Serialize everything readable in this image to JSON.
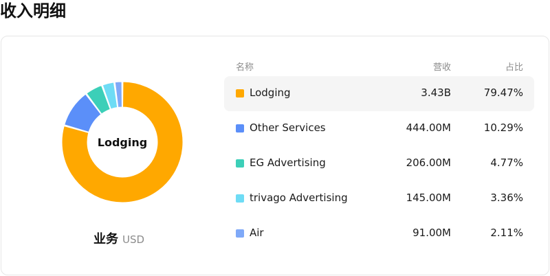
{
  "page": {
    "title": "收入明细"
  },
  "donut": {
    "center_label": "Lodging"
  },
  "segment_label": {
    "main": "业务",
    "unit": "USD"
  },
  "table": {
    "headers": {
      "name": "名称",
      "revenue": "营收",
      "share": "占比"
    },
    "rows": [
      {
        "name": "Lodging",
        "revenue": "3.43B",
        "share": "79.47%",
        "color": "#FFA800",
        "active": true
      },
      {
        "name": "Other Services",
        "revenue": "444.00M",
        "share": "10.29%",
        "color": "#5B8FF9",
        "active": false
      },
      {
        "name": "EG Advertising",
        "revenue": "206.00M",
        "share": "4.77%",
        "color": "#3CCFB8",
        "active": false
      },
      {
        "name": "trivago Advertising",
        "revenue": "145.00M",
        "share": "3.36%",
        "color": "#6EDCF5",
        "active": false
      },
      {
        "name": "Air",
        "revenue": "91.00M",
        "share": "2.11%",
        "color": "#7FA9F8",
        "active": false
      }
    ]
  },
  "chart_data": {
    "type": "pie",
    "variant": "donut",
    "categories": [
      "Lodging",
      "Other Services",
      "EG Advertising",
      "trivago Advertising",
      "Air"
    ],
    "values": [
      79.47,
      10.29,
      4.77,
      3.36,
      2.11
    ],
    "colors": [
      "#FFA800",
      "#5B8FF9",
      "#3CCFB8",
      "#6EDCF5",
      "#7FA9F8"
    ],
    "highlighted": "Lodging"
  }
}
